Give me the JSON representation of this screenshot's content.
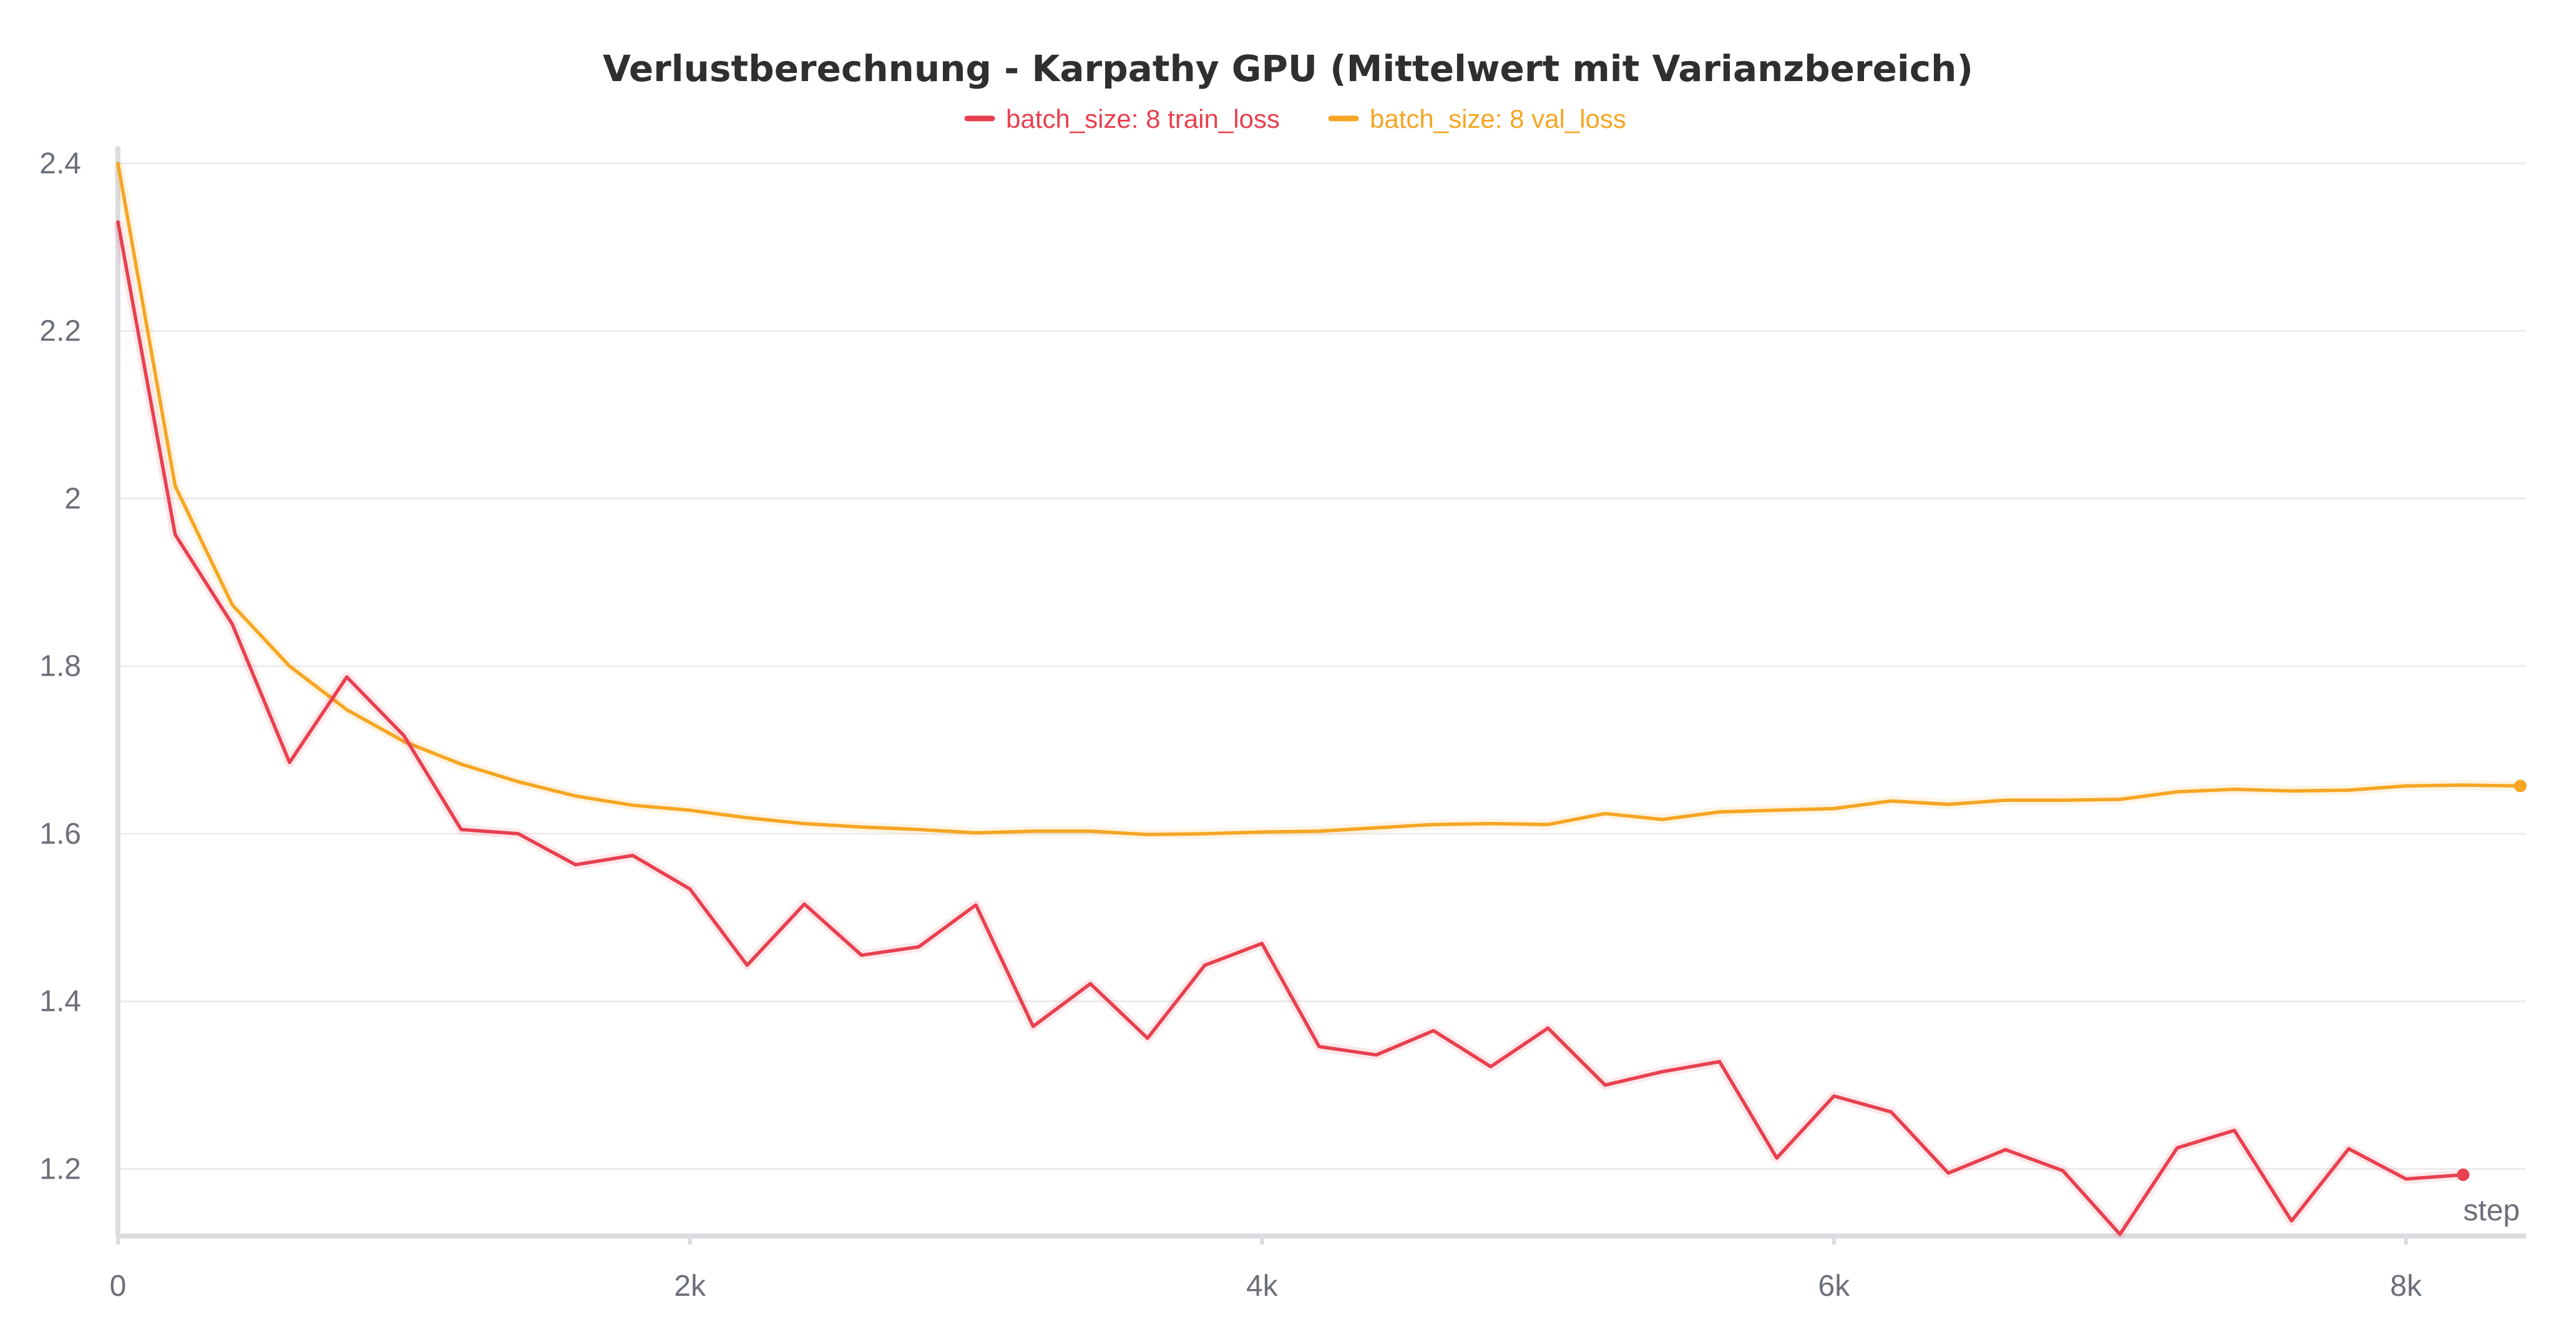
{
  "chart_data": {
    "type": "line",
    "title": "Verlustberechnung - Karpathy GPU (Mittelwert mit Varianzbereich)",
    "xlabel": "step",
    "ylabel": "",
    "xlim": [
      0,
      8420
    ],
    "ylim": [
      1.12,
      2.42
    ],
    "grid": true,
    "legend_position": "top-center",
    "x_ticks": [
      0,
      2000,
      4000,
      6000,
      8000
    ],
    "x_tick_labels": [
      "0",
      "2k",
      "4k",
      "6k",
      "8k"
    ],
    "y_ticks": [
      1.2,
      1.4,
      1.6,
      1.8,
      2.0,
      2.2,
      2.4
    ],
    "y_tick_labels": [
      "1.2",
      "1.4",
      "1.6",
      "1.8",
      "2",
      "2.2",
      "2.4"
    ],
    "series": [
      {
        "name": "batch_size: 8 train_loss",
        "color": "#e8404f",
        "x": [
          0,
          200,
          400,
          600,
          800,
          1000,
          1200,
          1400,
          1600,
          1800,
          2000,
          2200,
          2400,
          2600,
          2800,
          3000,
          3200,
          3400,
          3600,
          3800,
          4000,
          4200,
          4400,
          4600,
          4800,
          5000,
          5200,
          5400,
          5600,
          5800,
          6000,
          6200,
          6400,
          6600,
          6800,
          7000,
          7200,
          7400,
          7600,
          7800,
          8000,
          8200
        ],
        "values": [
          2.33,
          1.957,
          1.85,
          1.685,
          1.787,
          1.717,
          1.605,
          1.6,
          1.563,
          1.574,
          1.534,
          1.443,
          1.516,
          1.455,
          1.465,
          1.515,
          1.37,
          1.421,
          1.356,
          1.443,
          1.469,
          1.346,
          1.336,
          1.365,
          1.322,
          1.368,
          1.3,
          1.316,
          1.328,
          1.213,
          1.287,
          1.268,
          1.195,
          1.223,
          1.198,
          1.122,
          1.225,
          1.246,
          1.138,
          1.224,
          1.188,
          1.193
        ]
      },
      {
        "name": "batch_size: 8 val_loss",
        "color": "#f5a623",
        "x": [
          0,
          200,
          400,
          600,
          800,
          1000,
          1200,
          1400,
          1600,
          1800,
          2000,
          2200,
          2400,
          2600,
          2800,
          3000,
          3200,
          3400,
          3600,
          3800,
          4000,
          4200,
          4400,
          4600,
          4800,
          5000,
          5200,
          5400,
          5600,
          5800,
          6000,
          6200,
          6400,
          6600,
          6800,
          7000,
          7200,
          7400,
          7600,
          7800,
          8000,
          8200,
          8400
        ],
        "values": [
          2.4,
          2.015,
          1.873,
          1.8,
          1.748,
          1.71,
          1.683,
          1.662,
          1.645,
          1.634,
          1.628,
          1.619,
          1.612,
          1.608,
          1.605,
          1.601,
          1.603,
          1.603,
          1.599,
          1.6,
          1.602,
          1.603,
          1.607,
          1.611,
          1.612,
          1.611,
          1.624,
          1.617,
          1.626,
          1.628,
          1.63,
          1.639,
          1.635,
          1.64,
          1.64,
          1.641,
          1.65,
          1.653,
          1.651,
          1.652,
          1.657,
          1.658,
          1.657
        ]
      }
    ]
  }
}
